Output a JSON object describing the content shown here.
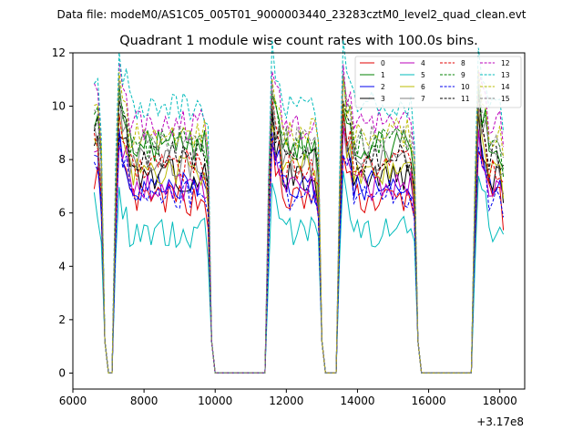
{
  "chart_data": {
    "type": "line",
    "suptitle": "Data file: modeM0/AS1C05_005T01_9000003440_23283cztM0_level2_quad_clean.evt",
    "title": "Quadrant 1 module wise count rates with 100.0s bins.",
    "xlabel": "",
    "ylabel": "",
    "x_offset_label": "+3.17e8",
    "xlim": [
      6000,
      18700
    ],
    "ylim": [
      -0.6,
      12
    ],
    "xticks": [
      6000,
      8000,
      10000,
      12000,
      14000,
      16000,
      18000
    ],
    "xtick_labels": [
      "6000",
      "8000",
      "10000",
      "12000",
      "14000",
      "16000",
      "18000"
    ],
    "yticks": [
      0,
      2,
      4,
      6,
      8,
      10,
      12
    ],
    "ytick_labels": [
      "0",
      "2",
      "4",
      "6",
      "8",
      "10",
      "12"
    ],
    "grid": false,
    "legend_position": "top-right",
    "legend_columns": 4,
    "segments": [
      {
        "start": 6600,
        "end": 6800
      },
      {
        "start": 7200,
        "end": 9800
      },
      {
        "start": 11500,
        "end": 12900
      },
      {
        "start": 13500,
        "end": 15600
      },
      {
        "start": 17300,
        "end": 18100
      }
    ],
    "series": [
      {
        "name": "0",
        "color": "#e00000",
        "dash": "solid",
        "level": 6.5
      },
      {
        "name": "1",
        "color": "#008000",
        "dash": "solid",
        "level": 8.5
      },
      {
        "name": "2",
        "color": "#0000ee",
        "dash": "solid",
        "level": 7.0
      },
      {
        "name": "3",
        "color": "#000000",
        "dash": "solid",
        "level": 7.4
      },
      {
        "name": "4",
        "color": "#bb00bb",
        "dash": "solid",
        "level": 7.0
      },
      {
        "name": "5",
        "color": "#00bbbb",
        "dash": "solid",
        "level": 5.3
      },
      {
        "name": "6",
        "color": "#bbbb00",
        "dash": "solid",
        "level": 7.6
      },
      {
        "name": "7",
        "color": "#808080",
        "dash": "solid",
        "level": 7.9
      },
      {
        "name": "8",
        "color": "#e00000",
        "dash": "dashed",
        "level": 7.8
      },
      {
        "name": "9",
        "color": "#008000",
        "dash": "dashed",
        "level": 8.6
      },
      {
        "name": "10",
        "color": "#0000ee",
        "dash": "dashed",
        "level": 6.7
      },
      {
        "name": "11",
        "color": "#000000",
        "dash": "dashed",
        "level": 8.1
      },
      {
        "name": "12",
        "color": "#bb00bb",
        "dash": "dashed",
        "level": 9.3
      },
      {
        "name": "13",
        "color": "#00bbbb",
        "dash": "dashed",
        "level": 10.0
      },
      {
        "name": "14",
        "color": "#bbbb00",
        "dash": "dashed",
        "level": 9.0
      },
      {
        "name": "15",
        "color": "#808080",
        "dash": "dashed",
        "level": 8.7
      }
    ]
  }
}
